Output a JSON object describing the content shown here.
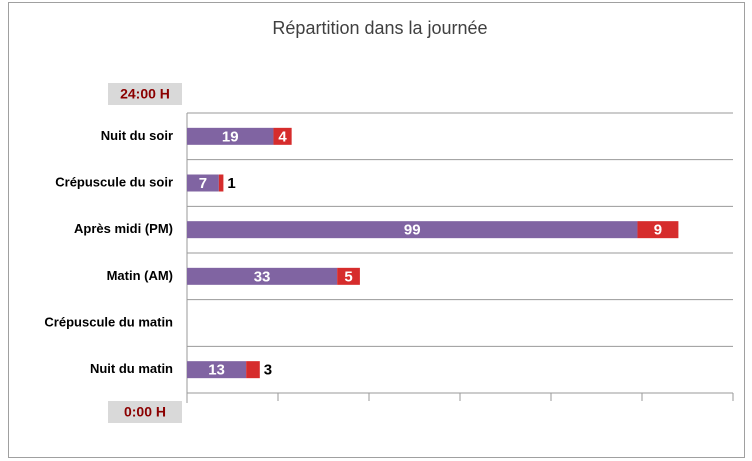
{
  "chart_data": {
    "type": "stacked-bar-horizontal",
    "title": "Répartition dans la journée",
    "annotations": [
      "24:00 H",
      "0:00 H"
    ],
    "categories": [
      "Nuit du soir",
      "Crépuscule du soir",
      "Après midi (PM)",
      "Matin (AM)",
      "Crépuscule du matin",
      "Nuit du matin"
    ],
    "series": [
      {
        "color": "#8064a2",
        "values": [
          19,
          7,
          99,
          33,
          0,
          13
        ]
      },
      {
        "color": "#d62c2c",
        "values": [
          4,
          1,
          9,
          5,
          0,
          3
        ]
      }
    ],
    "xlim": [
      0,
      120
    ],
    "xticks": [
      0,
      20,
      40,
      60,
      80,
      100,
      120
    ],
    "grid": true
  }
}
